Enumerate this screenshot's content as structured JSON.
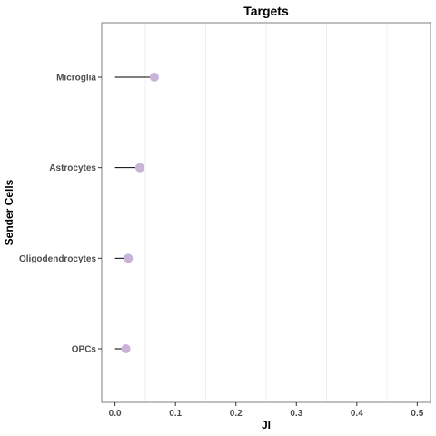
{
  "chart_data": {
    "type": "lollipop",
    "title": "Targets",
    "xlabel": "JI",
    "ylabel": "Sender Cells",
    "categories": [
      "Microglia",
      "Astrocytes",
      "Oligodendrocytes",
      "OPCs"
    ],
    "values": [
      0.065,
      0.041,
      0.022,
      0.018
    ],
    "xlim": [
      -0.022,
      0.522
    ],
    "x_ticks": [
      "0.0",
      "0.1",
      "0.2",
      "0.3",
      "0.4",
      "0.5"
    ],
    "grid": "vertical minor lines",
    "colors": {
      "point": "#c9b3d9",
      "stem": "#000000",
      "panel_border": "#7f7f7f",
      "grid": "#ebebeb"
    }
  }
}
